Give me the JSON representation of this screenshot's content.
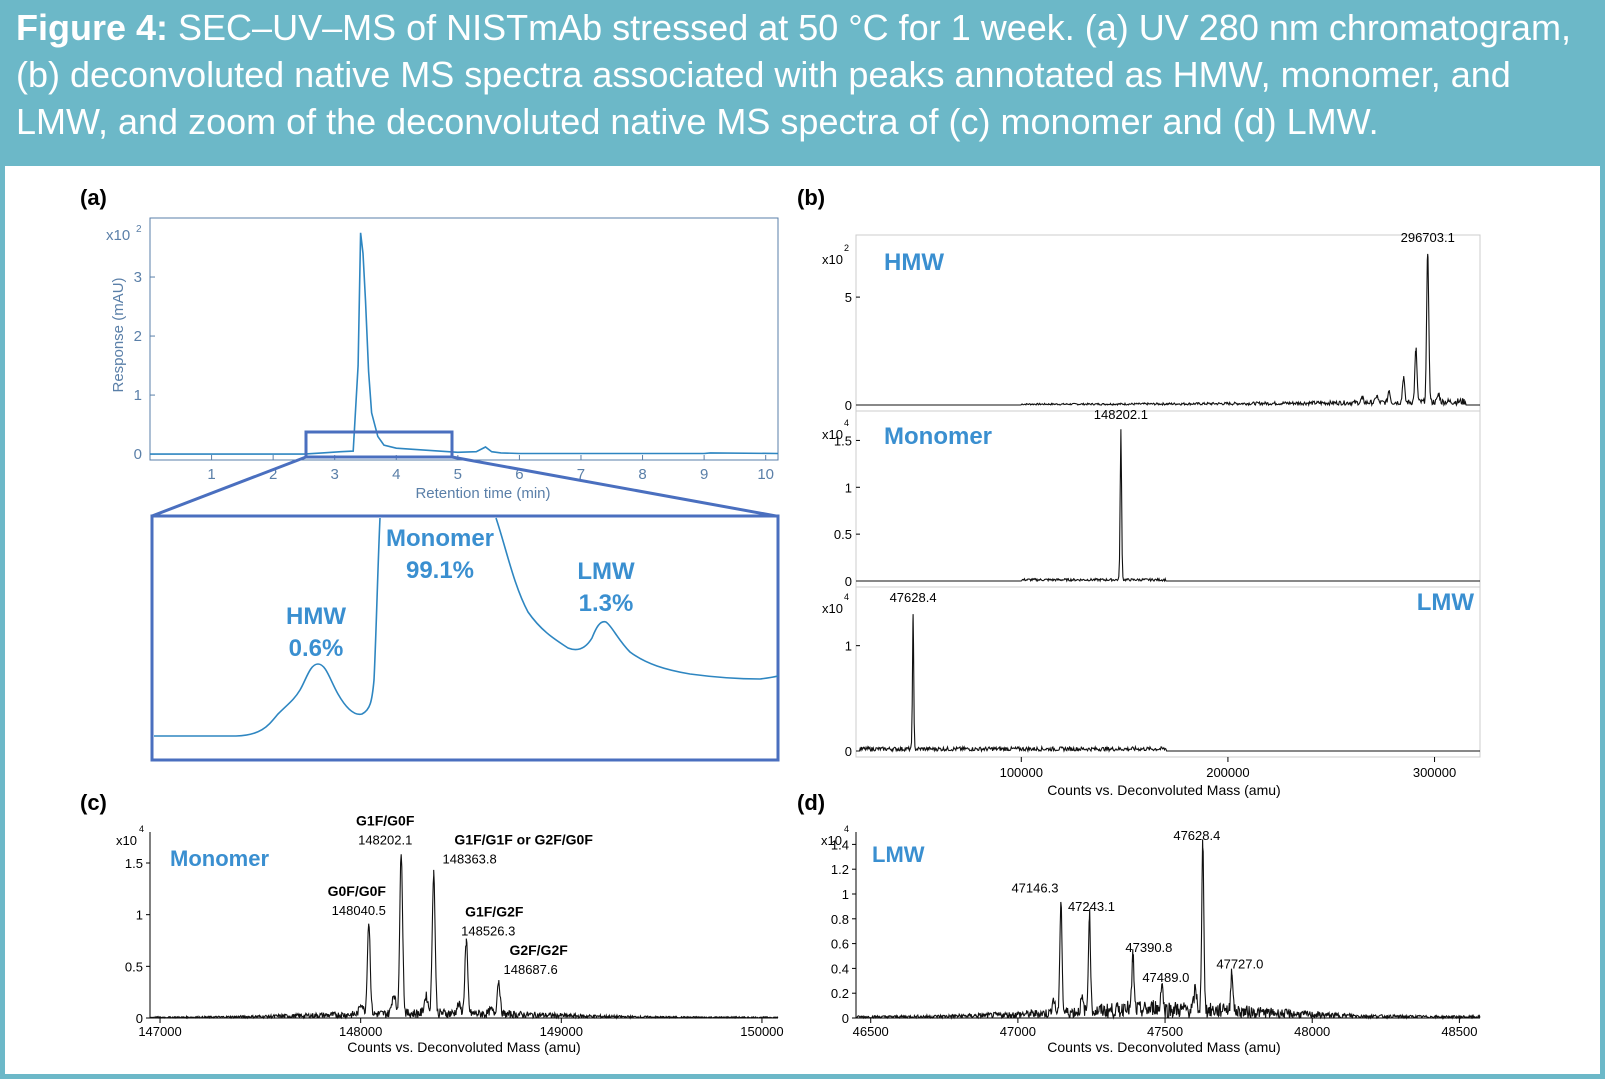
{
  "caption": {
    "label": "Figure 4:",
    "text": "SEC–UV–MS of NISTmAb stressed at 50 °C for 1 week. (a) UV 280 nm chromatogram, (b) deconvoluted native MS spectra associated with peaks annotated as HMW, monomer, and LMW, and zoom of the deconvoluted native MS spectra of (c) monomer and (d) LMW."
  },
  "colors": {
    "banner": "#6cb8c8",
    "uv_trace": "#2e86c1",
    "label_blue": "#3a8fd0",
    "frame_blue": "#4a6fbf",
    "ms_trace": "#111111"
  },
  "panel_labels": {
    "a": "(a)",
    "b": "(b)",
    "c": "(c)",
    "d": "(d)"
  },
  "chart_data": [
    {
      "id": "a",
      "type": "line",
      "title": "",
      "xlabel": "Retention time (min)",
      "ylabel": "Response (mAU)",
      "y_multiplier": "x10",
      "y_exponent": "2",
      "xlim": [
        0,
        10.2
      ],
      "ylim": [
        -0.1,
        4.0
      ],
      "xticks": [
        1,
        2,
        3,
        4,
        5,
        6,
        7,
        8,
        9,
        10
      ],
      "yticks": [
        0,
        1,
        2,
        3
      ],
      "series": [
        {
          "name": "UV 280 nm",
          "x": [
            0,
            2.5,
            2.8,
            3.1,
            3.3,
            3.38,
            3.42,
            3.46,
            3.5,
            3.55,
            3.6,
            3.7,
            3.8,
            4.0,
            4.3,
            5.0,
            5.3,
            5.45,
            5.55,
            5.7,
            6.0,
            9.0,
            9.1,
            10.2
          ],
          "y": [
            0,
            0,
            0.02,
            0.04,
            0.05,
            1.5,
            3.75,
            3.4,
            2.6,
            1.4,
            0.7,
            0.3,
            0.15,
            0.1,
            0.08,
            0.03,
            0.04,
            0.12,
            0.04,
            0.02,
            0.01,
            0.01,
            0.02,
            0.01
          ]
        }
      ]
    },
    {
      "id": "a_zoom",
      "type": "annotations",
      "labels": [
        {
          "name": "HMW",
          "value": "0.6%"
        },
        {
          "name": "Monomer",
          "value": "99.1%"
        },
        {
          "name": "LMW",
          "value": "1.3%"
        }
      ]
    },
    {
      "id": "b_hmw",
      "type": "line",
      "label": "HMW",
      "y_multiplier": "x10",
      "y_exponent": "2",
      "xlim": [
        20000,
        322000
      ],
      "ylim": [
        0,
        7.6
      ],
      "yticks": [
        0,
        5
      ],
      "peak_label": "296703.1",
      "peaks": [
        {
          "x": 296703.1,
          "y": 7.0
        },
        {
          "x": 291000,
          "y": 2.5
        },
        {
          "x": 285000,
          "y": 1.2
        },
        {
          "x": 278000,
          "y": 0.6
        },
        {
          "x": 272000,
          "y": 0.35
        },
        {
          "x": 302000,
          "y": 0.4
        },
        {
          "x": 265000,
          "y": 0.25
        }
      ]
    },
    {
      "id": "b_monomer",
      "type": "line",
      "label": "Monomer",
      "y_multiplier": "x10",
      "y_exponent": "4",
      "xlim": [
        20000,
        322000
      ],
      "ylim": [
        0,
        1.75
      ],
      "yticks": [
        0,
        0.5,
        1,
        1.5
      ],
      "peak_label": "148202.1",
      "peaks": [
        {
          "x": 148202.1,
          "y": 1.6
        }
      ]
    },
    {
      "id": "b_lmw",
      "type": "line",
      "label": "LMW",
      "y_multiplier": "x10",
      "y_exponent": "4",
      "xlim": [
        20000,
        322000
      ],
      "ylim": [
        0,
        1.5
      ],
      "yticks": [
        0,
        1
      ],
      "xticks": [
        100000,
        200000,
        300000
      ],
      "xlabel": "Counts vs. Deconvoluted Mass (amu)",
      "peak_label": "47628.4",
      "peaks": [
        {
          "x": 47628.4,
          "y": 1.3
        }
      ]
    },
    {
      "id": "c",
      "type": "line",
      "label": "Monomer",
      "xlabel": "Counts vs. Deconvoluted Mass (amu)",
      "y_multiplier": "x10",
      "y_exponent": "4",
      "xlim": [
        146950,
        150080
      ],
      "ylim": [
        0,
        1.8
      ],
      "xticks": [
        147000,
        148000,
        149000,
        150000
      ],
      "yticks": [
        0,
        0.5,
        1,
        1.5
      ],
      "peaks": [
        {
          "x": 148040.5,
          "y": 0.9,
          "label": "148040.5",
          "glycoform": "G0F/G0F"
        },
        {
          "x": 148202.1,
          "y": 1.58,
          "label": "148202.1",
          "glycoform": "G1F/G0F"
        },
        {
          "x": 148363.8,
          "y": 1.38,
          "label": "148363.8",
          "glycoform": "G1F/G1F or G2F/G0F"
        },
        {
          "x": 148526.3,
          "y": 0.7,
          "label": "148526.3",
          "glycoform": "G1F/G2F"
        },
        {
          "x": 148687.6,
          "y": 0.33,
          "label": "148687.6",
          "glycoform": "G2F/G2F"
        }
      ]
    },
    {
      "id": "d",
      "type": "line",
      "label": "LMW",
      "xlabel": "Counts vs. Deconvoluted Mass (amu)",
      "y_multiplier": "x10",
      "y_exponent": "4",
      "xlim": [
        46450,
        48570
      ],
      "ylim": [
        0,
        1.5
      ],
      "xticks": [
        46500,
        47000,
        47500,
        48000,
        48500
      ],
      "yticks": [
        0,
        0.2,
        0.4,
        0.6,
        0.8,
        1,
        1.2,
        1.4
      ],
      "peaks": [
        {
          "x": 47146.3,
          "y": 0.93,
          "label": "47146.3"
        },
        {
          "x": 47243.1,
          "y": 0.8,
          "label": "47243.1"
        },
        {
          "x": 47390.8,
          "y": 0.45,
          "label": "47390.8"
        },
        {
          "x": 47489.0,
          "y": 0.24,
          "label": "47489.0"
        },
        {
          "x": 47628.4,
          "y": 1.37,
          "label": "47628.4"
        },
        {
          "x": 47727.0,
          "y": 0.35,
          "label": "47727.0"
        }
      ]
    }
  ]
}
